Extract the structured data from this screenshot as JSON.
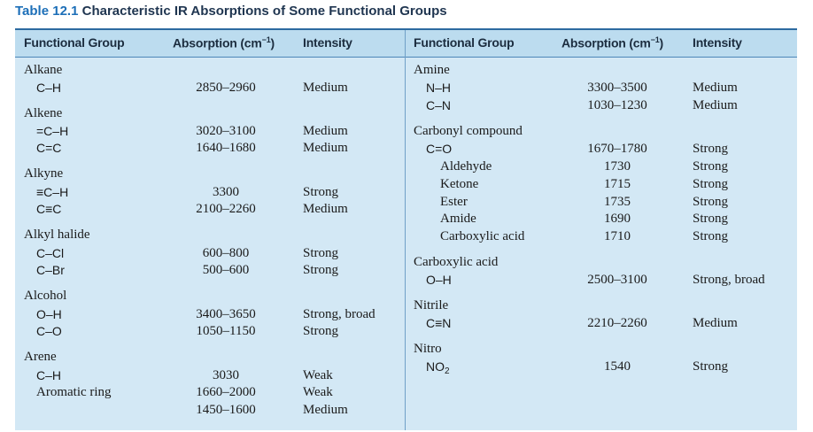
{
  "title": {
    "number": "Table 12.1",
    "text": "Characteristic IR Absorptions of Some Functional Groups"
  },
  "headers": {
    "functional_group": "Functional Group",
    "absorption": "Absorption (cm",
    "absorption_unit_sup": "−1",
    "absorption_close": ")",
    "intensity": "Intensity"
  },
  "left": {
    "alkane": {
      "name": "Alkane",
      "rows": [
        {
          "bond": "C–H",
          "abs": "2850–2960",
          "int": "Medium"
        }
      ]
    },
    "alkene": {
      "name": "Alkene",
      "rows": [
        {
          "bond": "=C–H",
          "abs": "3020–3100",
          "int": "Medium"
        },
        {
          "bond": "C=C",
          "abs": "1640–1680",
          "int": "Medium"
        }
      ]
    },
    "alkyne": {
      "name": "Alkyne",
      "rows": [
        {
          "bond": "≡C–H",
          "abs": "3300",
          "int": "Strong"
        },
        {
          "bond": "C≡C",
          "abs": "2100–2260",
          "int": "Medium"
        }
      ]
    },
    "alkyl_halide": {
      "name": "Alkyl halide",
      "rows": [
        {
          "bond": "C–Cl",
          "abs": "600–800",
          "int": "Strong"
        },
        {
          "bond": "C–Br",
          "abs": "500–600",
          "int": "Strong"
        }
      ]
    },
    "alcohol": {
      "name": "Alcohol",
      "rows": [
        {
          "bond": "O–H",
          "abs": "3400–3650",
          "int": "Strong, broad"
        },
        {
          "bond": "C–O",
          "abs": "1050–1150",
          "int": "Strong"
        }
      ]
    },
    "arene": {
      "name": "Arene",
      "rows": [
        {
          "bond": "C–H",
          "abs": "3030",
          "int": "Weak"
        },
        {
          "bond": "Aromatic ring",
          "abs": "1660–2000",
          "int": "Weak"
        },
        {
          "bond": "",
          "abs": "1450–1600",
          "int": "Medium"
        }
      ]
    }
  },
  "right": {
    "amine": {
      "name": "Amine",
      "rows": [
        {
          "bond": "N–H",
          "abs": "3300–3500",
          "int": "Medium"
        },
        {
          "bond": "C–N",
          "abs": "1030–1230",
          "int": "Medium"
        }
      ]
    },
    "carbonyl": {
      "name": "Carbonyl compound",
      "bond": "C=O",
      "rows": [
        {
          "bond": "Aldehyde",
          "abs": "1670–1780",
          "int": "Strong"
        },
        {
          "bond": "Ketone",
          "abs": "1730",
          "int": "Strong"
        },
        {
          "bond": "Ester",
          "abs": "1715",
          "int": "Strong"
        },
        {
          "bond": "Amide",
          "abs": "1735",
          "int": "Strong"
        },
        {
          "bond": "Carboxylic acid",
          "abs": "1690",
          "int": "Strong"
        },
        {
          "bond": "",
          "abs": "1710",
          "int": "Strong"
        }
      ]
    },
    "carboxylic_acid": {
      "name": "Carboxylic acid",
      "rows": [
        {
          "bond": "O–H",
          "abs": "2500–3100",
          "int": "Strong, broad"
        }
      ]
    },
    "nitrile": {
      "name": "Nitrile",
      "rows": [
        {
          "bond": "C≡N",
          "abs": "2210–2260",
          "int": "Medium"
        }
      ]
    },
    "nitro": {
      "name": "Nitro",
      "bond": "NO",
      "bond_sub": "2",
      "abs": "1540",
      "int": "Strong"
    }
  }
}
